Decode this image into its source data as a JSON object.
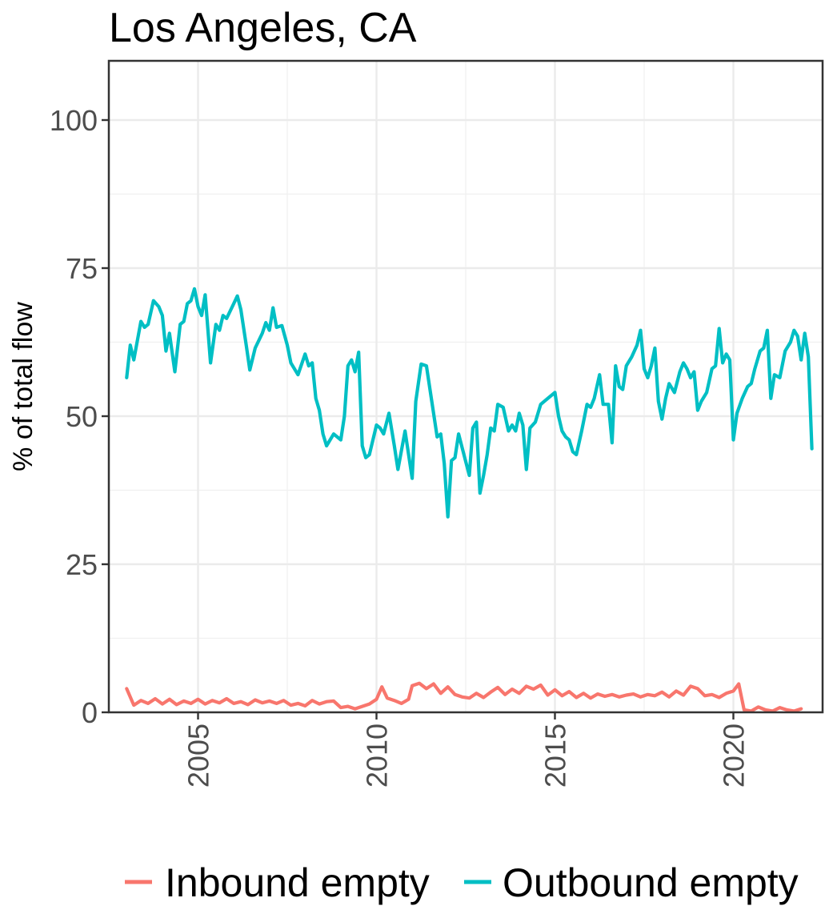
{
  "chart_data": {
    "type": "line",
    "title": "Los Angeles, CA",
    "xlabel": "",
    "ylabel": "% of total flow",
    "xlim": [
      2002.5,
      2022.5
    ],
    "ylim": [
      0,
      110
    ],
    "x_ticks": [
      2005,
      2010,
      2015,
      2020
    ],
    "y_ticks": [
      0,
      25,
      50,
      75,
      100
    ],
    "grid": true,
    "legend": "bottom",
    "series": [
      {
        "name": "Inbound empty",
        "color": "#F8766D",
        "points": [
          [
            2003.0,
            4.0
          ],
          [
            2003.2,
            1.2
          ],
          [
            2003.4,
            2.0
          ],
          [
            2003.6,
            1.5
          ],
          [
            2003.8,
            2.3
          ],
          [
            2004.0,
            1.4
          ],
          [
            2004.2,
            2.2
          ],
          [
            2004.4,
            1.3
          ],
          [
            2004.6,
            1.9
          ],
          [
            2004.8,
            1.5
          ],
          [
            2005.0,
            2.2
          ],
          [
            2005.2,
            1.4
          ],
          [
            2005.4,
            2.0
          ],
          [
            2005.6,
            1.6
          ],
          [
            2005.8,
            2.3
          ],
          [
            2006.0,
            1.5
          ],
          [
            2006.2,
            1.8
          ],
          [
            2006.4,
            1.3
          ],
          [
            2006.6,
            2.1
          ],
          [
            2006.8,
            1.6
          ],
          [
            2007.0,
            1.9
          ],
          [
            2007.2,
            1.5
          ],
          [
            2007.4,
            2.0
          ],
          [
            2007.6,
            1.2
          ],
          [
            2007.8,
            1.5
          ],
          [
            2008.0,
            1.1
          ],
          [
            2008.2,
            2.0
          ],
          [
            2008.4,
            1.4
          ],
          [
            2008.6,
            1.8
          ],
          [
            2008.8,
            1.9
          ],
          [
            2009.0,
            0.8
          ],
          [
            2009.2,
            1.0
          ],
          [
            2009.4,
            0.6
          ],
          [
            2009.6,
            1.0
          ],
          [
            2009.8,
            1.4
          ],
          [
            2010.0,
            2.2
          ],
          [
            2010.15,
            4.3
          ],
          [
            2010.3,
            2.4
          ],
          [
            2010.5,
            2.0
          ],
          [
            2010.7,
            1.5
          ],
          [
            2010.9,
            2.2
          ],
          [
            2011.0,
            4.5
          ],
          [
            2011.2,
            4.9
          ],
          [
            2011.4,
            4.0
          ],
          [
            2011.6,
            4.8
          ],
          [
            2011.8,
            3.2
          ],
          [
            2012.0,
            4.3
          ],
          [
            2012.2,
            3.0
          ],
          [
            2012.4,
            2.6
          ],
          [
            2012.6,
            2.4
          ],
          [
            2012.8,
            3.2
          ],
          [
            2013.0,
            2.5
          ],
          [
            2013.2,
            3.4
          ],
          [
            2013.4,
            4.2
          ],
          [
            2013.6,
            3.0
          ],
          [
            2013.8,
            3.9
          ],
          [
            2014.0,
            3.2
          ],
          [
            2014.2,
            4.4
          ],
          [
            2014.4,
            3.9
          ],
          [
            2014.6,
            4.6
          ],
          [
            2014.8,
            2.9
          ],
          [
            2015.0,
            3.8
          ],
          [
            2015.2,
            2.8
          ],
          [
            2015.4,
            3.5
          ],
          [
            2015.6,
            2.5
          ],
          [
            2015.8,
            3.2
          ],
          [
            2016.0,
            2.4
          ],
          [
            2016.2,
            3.1
          ],
          [
            2016.4,
            2.7
          ],
          [
            2016.6,
            3.0
          ],
          [
            2016.8,
            2.6
          ],
          [
            2017.0,
            2.9
          ],
          [
            2017.2,
            3.1
          ],
          [
            2017.4,
            2.6
          ],
          [
            2017.6,
            3.0
          ],
          [
            2017.8,
            2.8
          ],
          [
            2018.0,
            3.4
          ],
          [
            2018.2,
            2.6
          ],
          [
            2018.4,
            3.6
          ],
          [
            2018.6,
            2.9
          ],
          [
            2018.8,
            4.4
          ],
          [
            2019.0,
            4.0
          ],
          [
            2019.2,
            2.8
          ],
          [
            2019.4,
            3.0
          ],
          [
            2019.6,
            2.5
          ],
          [
            2019.8,
            3.2
          ],
          [
            2020.0,
            3.6
          ],
          [
            2020.15,
            4.8
          ],
          [
            2020.3,
            0.4
          ],
          [
            2020.5,
            0.2
          ],
          [
            2020.7,
            0.9
          ],
          [
            2020.9,
            0.4
          ],
          [
            2021.1,
            0.2
          ],
          [
            2021.3,
            0.8
          ],
          [
            2021.5,
            0.4
          ],
          [
            2021.7,
            0.2
          ],
          [
            2021.9,
            0.6
          ]
        ]
      },
      {
        "name": "Outbound empty",
        "color": "#00BFC4",
        "points": [
          [
            2003.0,
            56.5
          ],
          [
            2003.1,
            62.0
          ],
          [
            2003.2,
            59.5
          ],
          [
            2003.4,
            66.0
          ],
          [
            2003.5,
            65.0
          ],
          [
            2003.6,
            65.5
          ],
          [
            2003.75,
            69.5
          ],
          [
            2003.9,
            68.5
          ],
          [
            2004.0,
            67.0
          ],
          [
            2004.1,
            61.0
          ],
          [
            2004.2,
            64.0
          ],
          [
            2004.35,
            57.5
          ],
          [
            2004.5,
            65.5
          ],
          [
            2004.6,
            66.0
          ],
          [
            2004.7,
            69.0
          ],
          [
            2004.8,
            69.5
          ],
          [
            2004.9,
            71.5
          ],
          [
            2005.0,
            68.5
          ],
          [
            2005.1,
            67.0
          ],
          [
            2005.2,
            70.5
          ],
          [
            2005.35,
            59.0
          ],
          [
            2005.5,
            65.5
          ],
          [
            2005.6,
            64.5
          ],
          [
            2005.7,
            67.0
          ],
          [
            2005.8,
            66.5
          ],
          [
            2006.0,
            69.0
          ],
          [
            2006.1,
            70.3
          ],
          [
            2006.2,
            68.0
          ],
          [
            2006.35,
            62.0
          ],
          [
            2006.45,
            57.8
          ],
          [
            2006.6,
            61.5
          ],
          [
            2006.8,
            64.0
          ],
          [
            2006.9,
            65.8
          ],
          [
            2007.0,
            64.5
          ],
          [
            2007.1,
            68.3
          ],
          [
            2007.2,
            65.0
          ],
          [
            2007.35,
            65.3
          ],
          [
            2007.5,
            62.0
          ],
          [
            2007.6,
            59.0
          ],
          [
            2007.8,
            57.0
          ],
          [
            2008.0,
            60.5
          ],
          [
            2008.1,
            58.5
          ],
          [
            2008.2,
            59.0
          ],
          [
            2008.3,
            53.0
          ],
          [
            2008.4,
            51.0
          ],
          [
            2008.5,
            47.0
          ],
          [
            2008.6,
            45.0
          ],
          [
            2008.8,
            47.0
          ],
          [
            2009.0,
            46.0
          ],
          [
            2009.1,
            50.0
          ],
          [
            2009.2,
            58.5
          ],
          [
            2009.3,
            59.5
          ],
          [
            2009.4,
            57.5
          ],
          [
            2009.5,
            60.8
          ],
          [
            2009.6,
            45.0
          ],
          [
            2009.7,
            43.0
          ],
          [
            2009.8,
            43.5
          ],
          [
            2010.0,
            48.5
          ],
          [
            2010.1,
            48.0
          ],
          [
            2010.2,
            47.0
          ],
          [
            2010.35,
            50.5
          ],
          [
            2010.5,
            45.0
          ],
          [
            2010.6,
            41.0
          ],
          [
            2010.8,
            47.5
          ],
          [
            2011.0,
            39.5
          ],
          [
            2011.1,
            52.5
          ],
          [
            2011.25,
            58.8
          ],
          [
            2011.4,
            58.5
          ],
          [
            2011.55,
            52.5
          ],
          [
            2011.7,
            46.5
          ],
          [
            2011.8,
            47.0
          ],
          [
            2011.9,
            42.0
          ],
          [
            2012.0,
            33.0
          ],
          [
            2012.1,
            42.5
          ],
          [
            2012.2,
            43.0
          ],
          [
            2012.3,
            47.0
          ],
          [
            2012.45,
            43.5
          ],
          [
            2012.6,
            40.0
          ],
          [
            2012.7,
            48.0
          ],
          [
            2012.8,
            49.0
          ],
          [
            2012.9,
            37.0
          ],
          [
            2013.0,
            40.0
          ],
          [
            2013.1,
            43.5
          ],
          [
            2013.2,
            48.0
          ],
          [
            2013.3,
            47.5
          ],
          [
            2013.4,
            52.0
          ],
          [
            2013.55,
            51.5
          ],
          [
            2013.7,
            47.5
          ],
          [
            2013.8,
            48.5
          ],
          [
            2013.9,
            47.5
          ],
          [
            2014.0,
            50.5
          ],
          [
            2014.1,
            48.5
          ],
          [
            2014.2,
            41.0
          ],
          [
            2014.3,
            48.0
          ],
          [
            2014.45,
            49.0
          ],
          [
            2014.6,
            52.0
          ],
          [
            2014.8,
            53.0
          ],
          [
            2015.0,
            54.0
          ],
          [
            2015.1,
            50.0
          ],
          [
            2015.2,
            47.5
          ],
          [
            2015.3,
            46.5
          ],
          [
            2015.4,
            46.0
          ],
          [
            2015.5,
            44.0
          ],
          [
            2015.6,
            43.5
          ],
          [
            2015.75,
            47.5
          ],
          [
            2015.9,
            52.0
          ],
          [
            2016.0,
            51.5
          ],
          [
            2016.1,
            53.0
          ],
          [
            2016.25,
            57.0
          ],
          [
            2016.35,
            52.0
          ],
          [
            2016.5,
            52.0
          ],
          [
            2016.6,
            45.5
          ],
          [
            2016.7,
            58.5
          ],
          [
            2016.8,
            55.0
          ],
          [
            2016.9,
            54.5
          ],
          [
            2017.0,
            58.5
          ],
          [
            2017.15,
            60.0
          ],
          [
            2017.3,
            62.0
          ],
          [
            2017.4,
            64.5
          ],
          [
            2017.5,
            58.0
          ],
          [
            2017.6,
            56.5
          ],
          [
            2017.7,
            58.5
          ],
          [
            2017.8,
            61.5
          ],
          [
            2017.9,
            52.5
          ],
          [
            2018.0,
            49.5
          ],
          [
            2018.1,
            53.0
          ],
          [
            2018.2,
            55.5
          ],
          [
            2018.35,
            54.0
          ],
          [
            2018.5,
            57.5
          ],
          [
            2018.6,
            59.0
          ],
          [
            2018.7,
            58.0
          ],
          [
            2018.8,
            56.5
          ],
          [
            2018.9,
            57.5
          ],
          [
            2019.0,
            51.0
          ],
          [
            2019.1,
            52.5
          ],
          [
            2019.25,
            54.0
          ],
          [
            2019.4,
            58.0
          ],
          [
            2019.5,
            58.5
          ],
          [
            2019.6,
            64.8
          ],
          [
            2019.7,
            59.0
          ],
          [
            2019.8,
            60.5
          ],
          [
            2019.9,
            59.5
          ],
          [
            2020.0,
            46.0
          ],
          [
            2020.1,
            50.5
          ],
          [
            2020.25,
            53.0
          ],
          [
            2020.4,
            55.0
          ],
          [
            2020.5,
            55.5
          ],
          [
            2020.6,
            58.0
          ],
          [
            2020.75,
            61.0
          ],
          [
            2020.85,
            61.5
          ],
          [
            2020.95,
            64.5
          ],
          [
            2021.05,
            53.0
          ],
          [
            2021.15,
            57.0
          ],
          [
            2021.3,
            56.5
          ],
          [
            2021.45,
            61.0
          ],
          [
            2021.6,
            62.5
          ],
          [
            2021.7,
            64.5
          ],
          [
            2021.8,
            63.5
          ],
          [
            2021.9,
            59.5
          ],
          [
            2022.0,
            64.0
          ],
          [
            2022.1,
            60.0
          ],
          [
            2022.2,
            44.5
          ]
        ]
      }
    ]
  }
}
